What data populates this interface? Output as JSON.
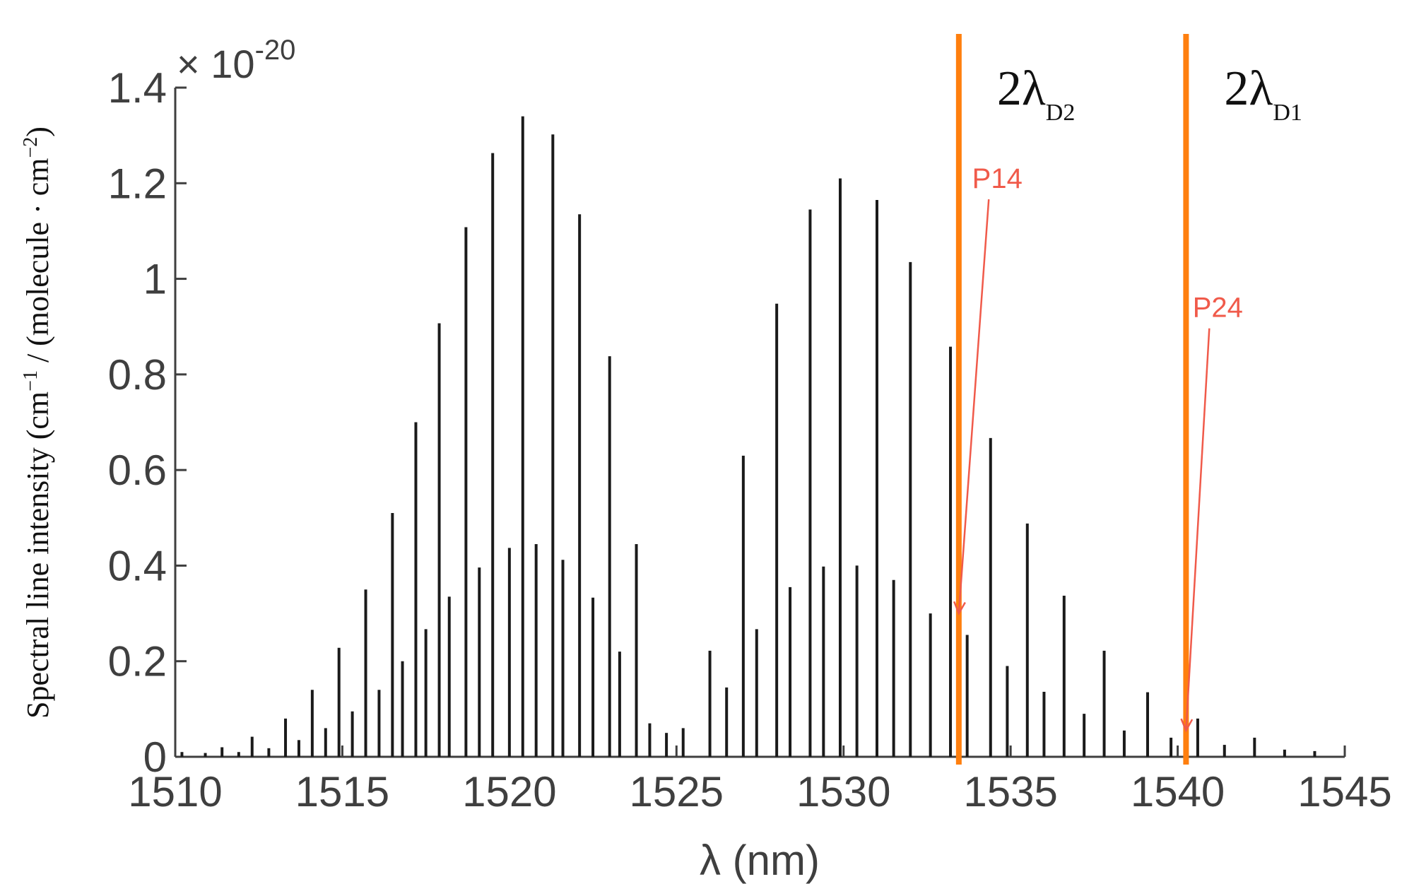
{
  "chart_data": {
    "type": "bar",
    "xlabel": "λ (nm)",
    "ylabel_main": "Spectral line intensity (cm",
    "ylabel_sup1": "−1",
    "ylabel_mid": " / (molecule · cm",
    "ylabel_sup2": "−2",
    "ylabel_end": ")",
    "scale_note_base": "× 10",
    "scale_note_exp": "-20",
    "xlim": [
      1510,
      1545
    ],
    "ylim": [
      0,
      1.4
    ],
    "xticks": [
      "1510",
      "1515",
      "1520",
      "1525",
      "1530",
      "1535",
      "1540",
      "1545"
    ],
    "yticks": [
      "0",
      "0.2",
      "0.4",
      "0.6",
      "0.8",
      "1",
      "1.2",
      "1.4"
    ],
    "ytick_values": [
      0,
      0.2,
      0.4,
      0.6,
      0.8,
      1.0,
      1.2,
      1.4
    ],
    "xtick_values": [
      1510,
      1515,
      1520,
      1525,
      1530,
      1535,
      1540,
      1545
    ],
    "line_color": "#1a1a1a",
    "series": [
      {
        "lines": [
          {
            "x": 1510.2,
            "y": 0.01
          },
          {
            "x": 1510.9,
            "y": 0.008
          },
          {
            "x": 1511.4,
            "y": 0.02
          },
          {
            "x": 1511.9,
            "y": 0.01
          },
          {
            "x": 1512.3,
            "y": 0.042
          },
          {
            "x": 1512.8,
            "y": 0.018
          },
          {
            "x": 1513.3,
            "y": 0.08
          },
          {
            "x": 1513.7,
            "y": 0.035
          },
          {
            "x": 1514.1,
            "y": 0.14
          },
          {
            "x": 1514.5,
            "y": 0.06
          },
          {
            "x": 1514.9,
            "y": 0.228
          },
          {
            "x": 1515.3,
            "y": 0.095
          },
          {
            "x": 1515.7,
            "y": 0.35
          },
          {
            "x": 1516.1,
            "y": 0.14
          },
          {
            "x": 1516.5,
            "y": 0.51
          },
          {
            "x": 1516.8,
            "y": 0.2
          },
          {
            "x": 1517.2,
            "y": 0.7
          },
          {
            "x": 1517.5,
            "y": 0.267
          },
          {
            "x": 1517.9,
            "y": 0.907
          },
          {
            "x": 1518.2,
            "y": 0.335
          },
          {
            "x": 1518.7,
            "y": 1.108
          },
          {
            "x": 1519.1,
            "y": 0.396
          },
          {
            "x": 1519.5,
            "y": 1.263
          },
          {
            "x": 1520.0,
            "y": 0.437
          },
          {
            "x": 1520.4,
            "y": 1.34
          },
          {
            "x": 1520.8,
            "y": 0.445
          },
          {
            "x": 1521.3,
            "y": 1.302
          },
          {
            "x": 1521.6,
            "y": 0.412
          },
          {
            "x": 1522.1,
            "y": 1.135
          },
          {
            "x": 1522.5,
            "y": 0.333
          },
          {
            "x": 1523.0,
            "y": 0.838
          },
          {
            "x": 1523.3,
            "y": 0.22
          },
          {
            "x": 1523.8,
            "y": 0.445
          },
          {
            "x": 1524.2,
            "y": 0.07
          },
          {
            "x": 1524.7,
            "y": 0.05
          },
          {
            "x": 1525.2,
            "y": 0.06
          },
          {
            "x": 1526.0,
            "y": 0.222
          },
          {
            "x": 1526.5,
            "y": 0.145
          },
          {
            "x": 1527.0,
            "y": 0.63
          },
          {
            "x": 1527.4,
            "y": 0.267
          },
          {
            "x": 1528.0,
            "y": 0.948
          },
          {
            "x": 1528.4,
            "y": 0.355
          },
          {
            "x": 1529.0,
            "y": 1.145
          },
          {
            "x": 1529.4,
            "y": 0.398
          },
          {
            "x": 1529.9,
            "y": 1.21
          },
          {
            "x": 1530.4,
            "y": 0.4
          },
          {
            "x": 1531.0,
            "y": 1.165
          },
          {
            "x": 1531.5,
            "y": 0.37
          },
          {
            "x": 1532.0,
            "y": 1.035
          },
          {
            "x": 1532.6,
            "y": 0.3
          },
          {
            "x": 1533.2,
            "y": 0.858
          },
          {
            "x": 1533.7,
            "y": 0.255
          },
          {
            "x": 1534.4,
            "y": 0.667
          },
          {
            "x": 1534.9,
            "y": 0.19
          },
          {
            "x": 1535.5,
            "y": 0.488
          },
          {
            "x": 1536.0,
            "y": 0.136
          },
          {
            "x": 1536.6,
            "y": 0.337
          },
          {
            "x": 1537.2,
            "y": 0.09
          },
          {
            "x": 1537.8,
            "y": 0.222
          },
          {
            "x": 1538.4,
            "y": 0.055
          },
          {
            "x": 1539.1,
            "y": 0.135
          },
          {
            "x": 1539.8,
            "y": 0.04
          },
          {
            "x": 1540.6,
            "y": 0.08
          },
          {
            "x": 1541.4,
            "y": 0.025
          },
          {
            "x": 1542.3,
            "y": 0.04
          },
          {
            "x": 1543.2,
            "y": 0.015
          },
          {
            "x": 1544.1,
            "y": 0.012
          }
        ]
      }
    ],
    "markers": [
      {
        "x": 1533.45,
        "label": "2λ",
        "sub": "D2",
        "color": "#ff7f0e"
      },
      {
        "x": 1540.25,
        "label": "2λ",
        "sub": "D1",
        "color": "#ff7f0e"
      }
    ],
    "annotations": [
      {
        "text": "P14",
        "color": "#f05a4a",
        "text_x": 1534.6,
        "text_y": 1.19,
        "target_x": 1533.45,
        "target_y": 0.3
      },
      {
        "text": "P24",
        "color": "#f05a4a",
        "text_x": 1541.2,
        "text_y": 0.92,
        "target_x": 1540.25,
        "target_y": 0.055
      }
    ]
  }
}
